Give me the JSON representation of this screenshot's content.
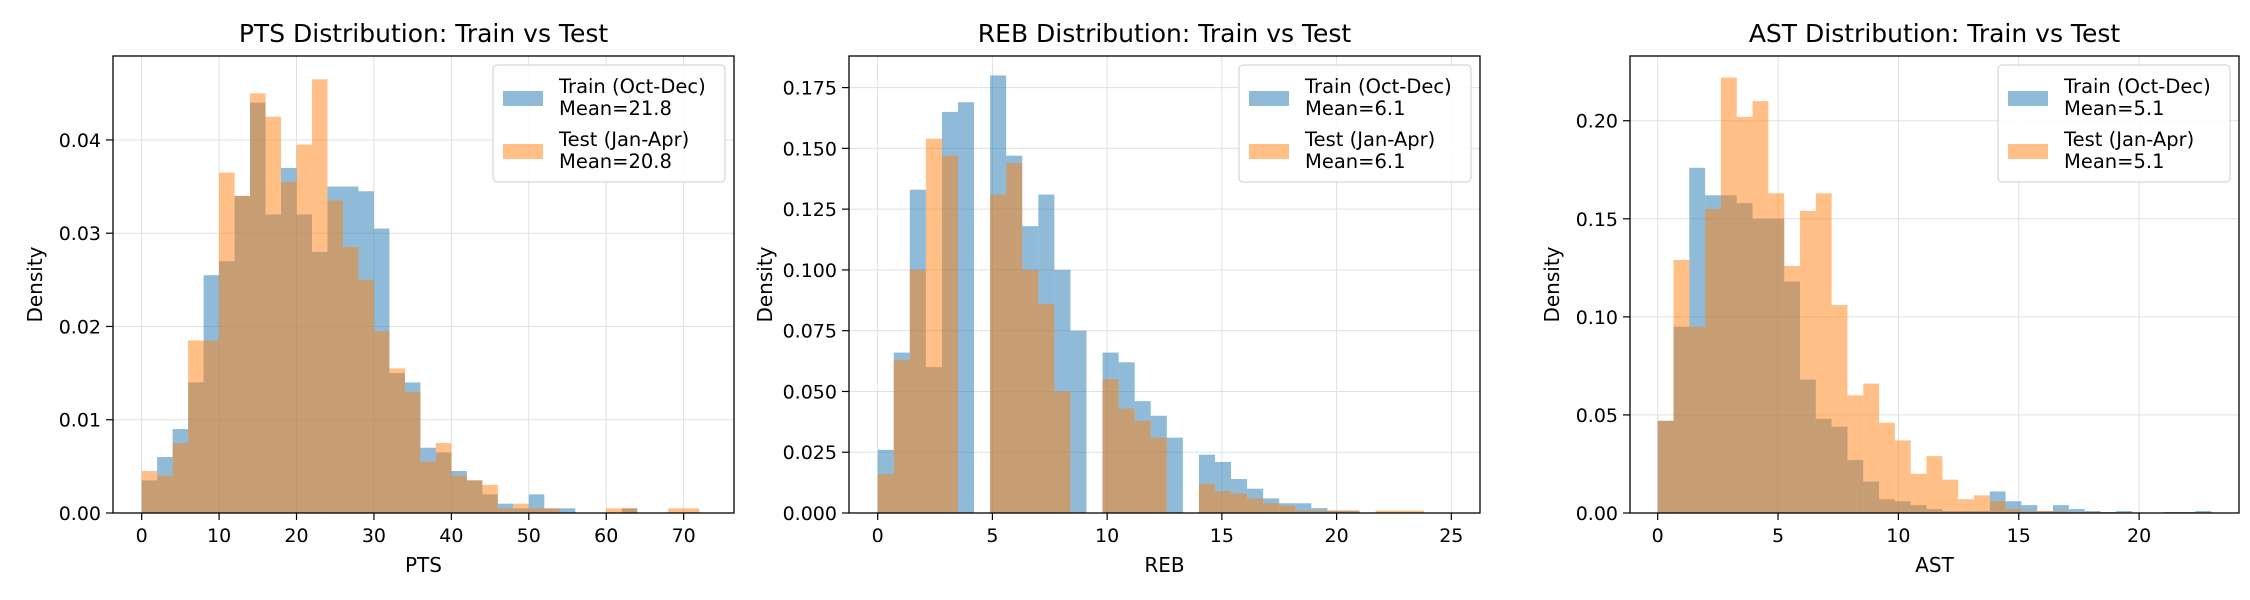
{
  "chart_data": [
    {
      "type": "histogram",
      "title": "PTS Distribution: Train vs Test",
      "xlabel": "PTS",
      "ylabel": "Density",
      "xlim": [
        -3.7,
        76.5
      ],
      "ylim": [
        0,
        0.049
      ],
      "xticks": [
        0,
        10,
        20,
        30,
        40,
        50,
        60,
        70
      ],
      "yticks": [
        0,
        0.01,
        0.02,
        0.03,
        0.04
      ],
      "ytick_labels": [
        "0.00",
        "0.01",
        "0.02",
        "0.03",
        "0.04"
      ],
      "grid": true,
      "legend_position": "upper right",
      "series": [
        {
          "name": "Train (Oct-Dec)",
          "label_lines": [
            "Train (Oct-Dec)",
            "Mean=21.8"
          ],
          "color": "#1f77b4",
          "bin_edges": [
            0,
            2,
            4,
            6,
            8,
            10,
            12,
            14,
            16,
            18,
            20,
            22,
            24,
            26,
            28,
            30,
            32,
            34,
            36,
            38,
            40,
            42,
            44,
            46,
            48,
            50,
            52,
            54,
            56,
            58,
            60,
            62,
            64,
            66,
            68,
            70,
            72,
            74
          ],
          "values": [
            0.0035,
            0.006,
            0.009,
            0.014,
            0.0255,
            0.027,
            0.034,
            0.044,
            0.032,
            0.037,
            0.032,
            0.028,
            0.035,
            0.035,
            0.0345,
            0.0305,
            0.015,
            0.014,
            0.007,
            0.0065,
            0.0045,
            0.0035,
            0.002,
            0.001,
            0.0005,
            0.002,
            0.0005,
            0.0005,
            0,
            0,
            0,
            0.0005,
            0,
            0,
            0,
            0,
            0
          ]
        },
        {
          "name": "Test (Jan-Apr)",
          "label_lines": [
            "Test (Jan-Apr)",
            "Mean=20.8"
          ],
          "color": "#ff7f0e",
          "bin_edges": [
            0,
            2,
            4,
            6,
            8,
            10,
            12,
            14,
            16,
            18,
            20,
            22,
            24,
            26,
            28,
            30,
            32,
            34,
            36,
            38,
            40,
            42,
            44,
            46,
            48,
            50,
            52,
            54,
            56,
            58,
            60,
            62,
            64,
            66,
            68,
            70,
            72,
            74
          ],
          "values": [
            0.0045,
            0.004,
            0.0075,
            0.0185,
            0.0185,
            0.0365,
            0.034,
            0.045,
            0.0425,
            0.0355,
            0.0395,
            0.0465,
            0.0335,
            0.0285,
            0.025,
            0.0195,
            0.0155,
            0.013,
            0.0055,
            0.0075,
            0.004,
            0.0035,
            0.003,
            0.0005,
            0.001,
            0.0005,
            0.0005,
            0,
            0,
            0,
            0.0005,
            0.0005,
            0,
            0,
            0.0005,
            0.0005,
            0
          ]
        }
      ]
    },
    {
      "type": "histogram",
      "title": "REB Distribution: Train vs Test",
      "xlabel": "REB",
      "ylabel": "Density",
      "xlim": [
        -1.25,
        26.25
      ],
      "ylim": [
        0,
        0.188
      ],
      "xticks": [
        0,
        5,
        10,
        15,
        20,
        25
      ],
      "yticks": [
        0,
        0.025,
        0.05,
        0.075,
        0.1,
        0.125,
        0.15,
        0.175
      ],
      "ytick_labels": [
        "0.000",
        "0.025",
        "0.050",
        "0.075",
        "0.100",
        "0.125",
        "0.150",
        "0.175"
      ],
      "grid": true,
      "legend_position": "upper right",
      "series": [
        {
          "name": "Train (Oct-Dec)",
          "label_lines": [
            "Train (Oct-Dec)",
            "Mean=6.1"
          ],
          "color": "#1f77b4",
          "bin_edges": [
            0,
            0.7,
            1.4,
            2.1,
            2.8,
            3.5,
            4.2,
            4.9,
            5.6,
            6.3,
            7.0,
            7.7,
            8.4,
            9.1,
            9.8,
            10.5,
            11.2,
            11.9,
            12.6,
            13.3,
            14.0,
            14.7,
            15.4,
            16.1,
            16.8,
            17.5,
            18.2,
            18.9,
            19.6,
            20.3,
            21.0,
            21.7,
            22.4,
            23.1,
            23.8,
            24.5,
            25.2
          ],
          "values": [
            0.026,
            0.066,
            0.133,
            0.06,
            0.165,
            0.169,
            0,
            0.18,
            0.147,
            0.118,
            0.131,
            0.1,
            0.075,
            0,
            0.066,
            0.062,
            0.046,
            0.04,
            0.031,
            0,
            0.024,
            0.021,
            0.014,
            0.01,
            0.006,
            0.004,
            0.004,
            0.002,
            0.001,
            0.001,
            0,
            0,
            0,
            0,
            0,
            0
          ]
        },
        {
          "name": "Test (Jan-Apr)",
          "label_lines": [
            "Test (Jan-Apr)",
            "Mean=6.1"
          ],
          "color": "#ff7f0e",
          "bin_edges": [
            0,
            0.7,
            1.4,
            2.1,
            2.8,
            3.5,
            4.2,
            4.9,
            5.6,
            6.3,
            7.0,
            7.7,
            8.4,
            9.1,
            9.8,
            10.5,
            11.2,
            11.9,
            12.6,
            13.3,
            14.0,
            14.7,
            15.4,
            16.1,
            16.8,
            17.5,
            18.2,
            18.9,
            19.6,
            20.3,
            21.0,
            21.7,
            22.4,
            23.1,
            23.8,
            24.5,
            25.2
          ],
          "values": [
            0.016,
            0.063,
            0.1,
            0.154,
            0.147,
            0,
            0,
            0.131,
            0.144,
            0.1,
            0.086,
            0.05,
            0,
            0,
            0.055,
            0.043,
            0.038,
            0.031,
            0,
            0,
            0.012,
            0.009,
            0.008,
            0.006,
            0.004,
            0.003,
            0.001,
            0.001,
            0.001,
            0.001,
            0,
            0.001,
            0.001,
            0.001,
            0,
            0
          ]
        }
      ]
    },
    {
      "type": "histogram",
      "title": "AST Distribution: Train vs Test",
      "xlabel": "AST",
      "ylabel": "Density",
      "xlim": [
        -1.15,
        24.15
      ],
      "ylim": [
        0,
        0.233
      ],
      "xticks": [
        0,
        5,
        10,
        15,
        20
      ],
      "yticks": [
        0,
        0.05,
        0.1,
        0.15,
        0.2
      ],
      "ytick_labels": [
        "0.00",
        "0.05",
        "0.10",
        "0.15",
        "0.20"
      ],
      "grid": true,
      "legend_position": "upper right",
      "series": [
        {
          "name": "Train (Oct-Dec)",
          "label_lines": [
            "Train (Oct-Dec)",
            "Mean=5.1"
          ],
          "color": "#1f77b4",
          "bin_edges": [
            0,
            0.657,
            1.314,
            1.971,
            2.628,
            3.285,
            3.942,
            4.599,
            5.256,
            5.913,
            6.57,
            7.227,
            7.884,
            8.541,
            9.198,
            9.855,
            10.512,
            11.169,
            11.826,
            12.483,
            13.14,
            13.797,
            14.454,
            15.111,
            15.768,
            16.425,
            17.082,
            17.739,
            18.396,
            19.053,
            19.71,
            20.367,
            21.024,
            21.681,
            22.338,
            22.995
          ],
          "values": [
            0.047,
            0.095,
            0.176,
            0.162,
            0.162,
            0.158,
            0.15,
            0.15,
            0.118,
            0.068,
            0.048,
            0.044,
            0.027,
            0.016,
            0.007,
            0.006,
            0.004,
            0.002,
            0.001,
            0.001,
            0.001,
            0.011,
            0.006,
            0.004,
            0.001,
            0.004,
            0.002,
            0.001,
            0.0005,
            0.001,
            0,
            0,
            0.0005,
            0.0005,
            0.001
          ]
        },
        {
          "name": "Test (Jan-Apr)",
          "label_lines": [
            "Test (Jan-Apr)",
            "Mean=5.1"
          ],
          "color": "#ff7f0e",
          "bin_edges": [
            0,
            0.657,
            1.314,
            1.971,
            2.628,
            3.285,
            3.942,
            4.599,
            5.256,
            5.913,
            6.57,
            7.227,
            7.884,
            8.541,
            9.198,
            9.855,
            10.512,
            11.169,
            11.826,
            12.483,
            13.14,
            13.797,
            14.454,
            15.111,
            15.768,
            16.425,
            17.082,
            17.739,
            18.396,
            19.053,
            19.71,
            20.367,
            21.024,
            21.681,
            22.338,
            22.995
          ],
          "values": [
            0.047,
            0.129,
            0.095,
            0.155,
            0.222,
            0.202,
            0.21,
            0.163,
            0.126,
            0.154,
            0.163,
            0.106,
            0.06,
            0.066,
            0.046,
            0.037,
            0.02,
            0.029,
            0.017,
            0.007,
            0.009,
            0.006,
            0.002,
            0.001,
            0.001,
            0.001,
            0,
            0,
            0,
            0,
            0,
            0,
            0,
            0,
            0
          ]
        }
      ]
    }
  ]
}
